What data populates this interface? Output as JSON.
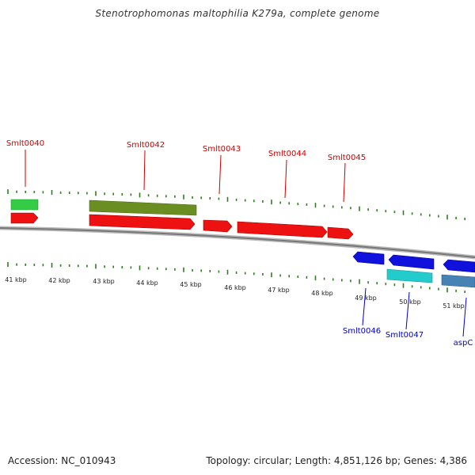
{
  "title": "Stenotrophomonas maltophilia K279a, complete genome",
  "colors": {
    "upper_label": "#cc0000",
    "lower_label": "#0000cc",
    "tick": "#2e7d1e",
    "backbone": "#888888",
    "cds_red": "#ee1111",
    "cds_green": "#33cc44",
    "cds_olive": "#6b8e23",
    "cds_blue": "#1111dd",
    "cds_cyan": "#22cccc",
    "cds_steel": "#4682b4"
  },
  "upper_labels": [
    {
      "text": "Smlt0040",
      "icon": "pointer-line"
    },
    {
      "text": "Smlt0042",
      "icon": "pointer-line"
    },
    {
      "text": "Smlt0043",
      "icon": "pointer-line"
    },
    {
      "text": "Smlt0044",
      "icon": "pointer-line"
    },
    {
      "text": "Smlt0045",
      "icon": "pointer-line"
    }
  ],
  "lower_labels": [
    {
      "text": "Smlt0046",
      "icon": "pointer-line"
    },
    {
      "text": "Smlt0047",
      "icon": "pointer-line"
    },
    {
      "text": "aspC",
      "icon": "pointer-line"
    }
  ],
  "kbp_labels": [
    "41 kbp",
    "42 kbp",
    "43 kbp",
    "44 kbp",
    "45 kbp",
    "46 kbp",
    "47 kbp",
    "48 kbp",
    "49 kbp",
    "50 kbp",
    "51 kbp"
  ],
  "footer": {
    "accession": "Accession: NC_010943",
    "topology": "Topology: circular; Length: 4,851,126 bp; Genes: 4,386"
  }
}
